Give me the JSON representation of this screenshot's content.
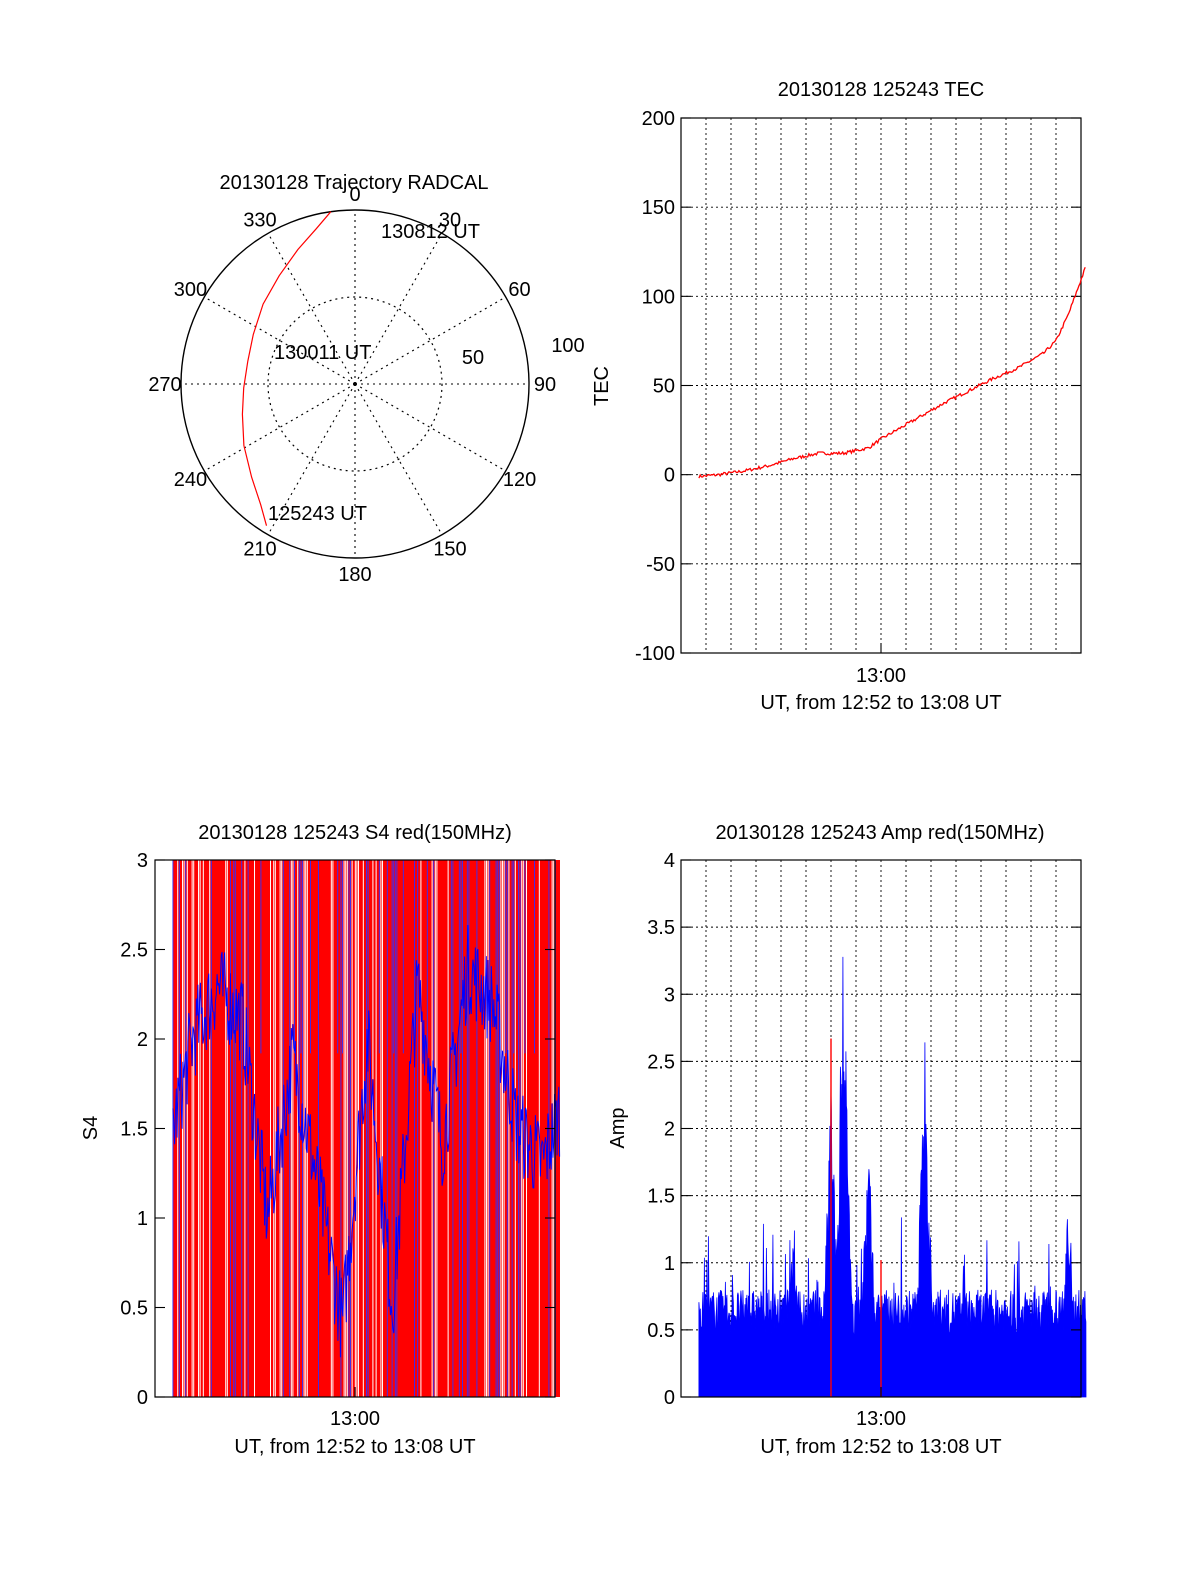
{
  "colors": {
    "red": "#ff0000",
    "blue": "#0000ff",
    "axis": "#000000",
    "grid": "#000000"
  },
  "chart_data": [
    {
      "id": "trajectory",
      "type": "polar",
      "title": "20130128 Trajectory RADCAL",
      "angle_labels": [
        "0",
        "30",
        "60",
        "90",
        "120",
        "150",
        "180",
        "210",
        "240",
        "270",
        "300",
        "330"
      ],
      "angle_values": [
        0,
        30,
        60,
        90,
        120,
        150,
        180,
        210,
        240,
        270,
        300,
        330
      ],
      "radial_labels": [
        "50",
        "100"
      ],
      "radial_values": [
        50,
        100
      ],
      "rmax": 100,
      "track": {
        "azimuth": [
          212,
          218,
          228,
          241,
          255,
          268,
          282,
          296,
          311,
          325,
          337,
          346,
          352
        ],
        "radius": [
          96,
          88,
          80,
          73,
          67,
          64,
          63,
          65,
          70,
          76,
          84,
          92,
          100
        ]
      },
      "annotations": {
        "start": "125243 UT",
        "mid": "130011 UT",
        "end": "130812 UT"
      }
    },
    {
      "id": "tec",
      "type": "line",
      "title": "20130128 125243 TEC",
      "ylabel": "TEC",
      "xlabel": "UT, from 12:52 to 13:08 UT",
      "xtick_label": "13:00",
      "ylim": [
        -100,
        200
      ],
      "ytick_labels": [
        "-100",
        "-50",
        "0",
        "50",
        "100",
        "150",
        "200"
      ],
      "ytick_values": [
        -100,
        -50,
        0,
        50,
        100,
        150,
        200
      ],
      "x": [
        "12:52:43",
        "12:53:30",
        "12:54:30",
        "12:55:30",
        "12:56:30",
        "12:57:30",
        "12:58:30",
        "12:59:30",
        "13:00:00",
        "13:00:30",
        "13:01:30",
        "13:02:30",
        "13:03:30",
        "13:04:30",
        "13:05:30",
        "13:06:30",
        "13:07:00",
        "13:07:30",
        "13:08:12"
      ],
      "values": [
        -1,
        0,
        2,
        5,
        9,
        12,
        12,
        15,
        20,
        24,
        32,
        40,
        47,
        54,
        60,
        68,
        75,
        90,
        117
      ]
    },
    {
      "id": "s4",
      "type": "bar",
      "title": "20130128 125243 S4 red(150MHz)",
      "ylabel": "S4",
      "xlabel": "UT, from 12:52 to 13:08 UT",
      "xtick_label": "13:00",
      "ylim": [
        0,
        3
      ],
      "ytick_labels": [
        "0",
        "0.5",
        "1",
        "1.5",
        "2",
        "2.5",
        "3"
      ],
      "ytick_values": [
        0,
        0.5,
        1,
        1.5,
        2,
        2.5,
        3
      ],
      "blue_envelope": {
        "x": [
          "12:52:43",
          "12:53:30",
          "12:54:30",
          "12:55:30",
          "12:56:30",
          "12:57:30",
          "12:58:30",
          "12:59:30",
          "13:00:30",
          "13:01:30",
          "13:02:30",
          "13:03:30",
          "13:04:30",
          "13:05:30",
          "13:06:30",
          "13:07:30",
          "13:08:12"
        ],
        "values": [
          1.5,
          2.0,
          2.3,
          2.1,
          1.0,
          1.9,
          1.2,
          0.4,
          2.0,
          0.5,
          2.3,
          1.4,
          2.4,
          2.2,
          1.5,
          1.3,
          1.6
        ]
      }
    },
    {
      "id": "amp",
      "type": "bar",
      "title": "20130128 125243 Amp red(150MHz)",
      "ylabel": "Amp",
      "xlabel": "UT, from 12:52 to 13:08 UT",
      "xtick_label": "13:00",
      "ylim": [
        0,
        4
      ],
      "ytick_labels": [
        "0",
        "0.5",
        "1",
        "1.5",
        "2",
        "2.5",
        "3",
        "3.5",
        "4"
      ],
      "ytick_values": [
        0,
        0.5,
        1,
        1.5,
        2,
        2.5,
        3,
        3.5,
        4
      ],
      "blue_peaks": {
        "x": [
          "12:56:30",
          "12:58:00",
          "12:58:30",
          "12:59:30",
          "13:01:45",
          "13:07:30"
        ],
        "values": [
          1.4,
          2.4,
          3.5,
          2.0,
          2.7,
          1.5
        ]
      },
      "red_spikes": {
        "x": [
          "12:58:00",
          "13:00:00"
        ],
        "values": [
          2.67,
          1.02
        ]
      }
    }
  ]
}
